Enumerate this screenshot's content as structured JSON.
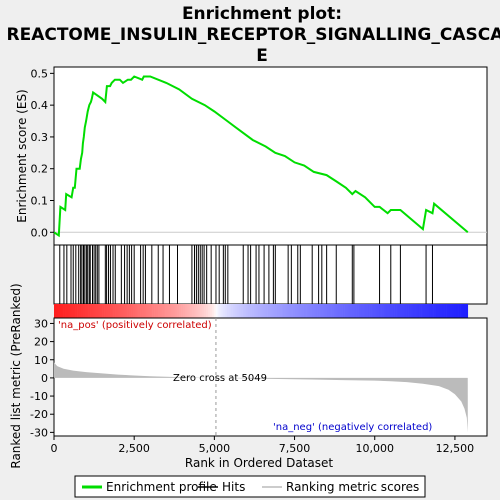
{
  "title_line1": "Enrichment plot:",
  "title_line2": "REACTOME_INSULIN_RECEPTOR_SIGNALLING_CASCAD",
  "title_line3": "E",
  "colors": {
    "es_line": "#00dd00",
    "hits": "#000000",
    "metric_fill": "#bbbbbb",
    "pos_label": "#cc0000",
    "neg_label": "#0000cc",
    "zero_line": "#999999"
  },
  "chart_data": {
    "type": "line",
    "x_label": "Rank in Ordered Dataset",
    "x_range": [
      0,
      13500
    ],
    "x_ticks": [
      0,
      2500,
      5000,
      7500,
      10000,
      12500
    ],
    "x_tick_labels": [
      "0",
      "2,500",
      "5,000",
      "7,500",
      "10,000",
      "12,500"
    ],
    "es_panel": {
      "ylabel": "Enrichment score (ES)",
      "ylim": [
        -0.04,
        0.52
      ],
      "y_ticks": [
        0.0,
        0.1,
        0.2,
        0.3,
        0.4,
        0.5
      ],
      "y_tick_labels": [
        "0.0",
        "0.1",
        "0.2",
        "0.3",
        "0.4",
        "0.5"
      ],
      "es_profile": [
        [
          0,
          0.0
        ],
        [
          150,
          -0.01
        ],
        [
          200,
          0.08
        ],
        [
          350,
          0.07
        ],
        [
          380,
          0.12
        ],
        [
          550,
          0.11
        ],
        [
          600,
          0.14
        ],
        [
          650,
          0.14
        ],
        [
          700,
          0.2
        ],
        [
          800,
          0.2
        ],
        [
          840,
          0.23
        ],
        [
          880,
          0.25
        ],
        [
          900,
          0.28
        ],
        [
          930,
          0.3
        ],
        [
          960,
          0.33
        ],
        [
          1000,
          0.35
        ],
        [
          1050,
          0.38
        ],
        [
          1100,
          0.4
        ],
        [
          1150,
          0.41
        ],
        [
          1180,
          0.42
        ],
        [
          1220,
          0.44
        ],
        [
          1500,
          0.42
        ],
        [
          1600,
          0.41
        ],
        [
          1650,
          0.46
        ],
        [
          1750,
          0.46
        ],
        [
          1800,
          0.47
        ],
        [
          1900,
          0.48
        ],
        [
          2050,
          0.48
        ],
        [
          2150,
          0.47
        ],
        [
          2300,
          0.48
        ],
        [
          2400,
          0.48
        ],
        [
          2500,
          0.49
        ],
        [
          2750,
          0.48
        ],
        [
          2800,
          0.49
        ],
        [
          3000,
          0.49
        ],
        [
          3500,
          0.47
        ],
        [
          3900,
          0.45
        ],
        [
          4300,
          0.42
        ],
        [
          4700,
          0.4
        ],
        [
          5000,
          0.38
        ],
        [
          5400,
          0.35
        ],
        [
          5800,
          0.32
        ],
        [
          6200,
          0.29
        ],
        [
          6600,
          0.27
        ],
        [
          6900,
          0.25
        ],
        [
          7200,
          0.24
        ],
        [
          7500,
          0.22
        ],
        [
          7800,
          0.21
        ],
        [
          8100,
          0.19
        ],
        [
          8500,
          0.18
        ],
        [
          8800,
          0.16
        ],
        [
          9100,
          0.14
        ],
        [
          9300,
          0.12
        ],
        [
          9400,
          0.13
        ],
        [
          9700,
          0.11
        ],
        [
          10000,
          0.08
        ],
        [
          10150,
          0.08
        ],
        [
          10400,
          0.06
        ],
        [
          10500,
          0.07
        ],
        [
          10800,
          0.07
        ],
        [
          11500,
          0.01
        ],
        [
          11600,
          0.07
        ],
        [
          11800,
          0.06
        ],
        [
          11850,
          0.09
        ],
        [
          12900,
          0.0
        ]
      ]
    },
    "hits": [
      180,
      310,
      400,
      530,
      600,
      680,
      770,
      830,
      870,
      920,
      960,
      1010,
      1050,
      1100,
      1130,
      1200,
      1250,
      1300,
      1350,
      1400,
      1600,
      1640,
      1700,
      1760,
      1840,
      1910,
      2100,
      2200,
      2280,
      2350,
      2420,
      2500,
      2700,
      2780,
      2850,
      3050,
      3250,
      3400,
      3600,
      3850,
      4300,
      4380,
      4440,
      4500,
      4560,
      4620,
      4680,
      4760,
      4900,
      5050,
      5150,
      5280,
      5340,
      5420,
      5900,
      6050,
      6130,
      6300,
      6390,
      6550,
      6700,
      6840,
      6900,
      7300,
      7400,
      7600,
      7680,
      8050,
      8250,
      8350,
      8500,
      8800,
      9300,
      9350,
      10150,
      10500,
      10800,
      11600,
      11800
    ],
    "metric_panel": {
      "ylabel": "Ranked list metric (PreRanked)",
      "ylim": [
        -32,
        33
      ],
      "y_ticks": [
        -30,
        -20,
        -10,
        0,
        10,
        20,
        30
      ],
      "y_tick_labels": [
        "-30",
        "-20",
        "-10",
        "0",
        "10",
        "20",
        "30"
      ],
      "metric_curve": [
        [
          0,
          8.5
        ],
        [
          100,
          6.5
        ],
        [
          300,
          5.0
        ],
        [
          600,
          4.0
        ],
        [
          1000,
          3.2
        ],
        [
          1500,
          2.5
        ],
        [
          2000,
          1.8
        ],
        [
          2500,
          1.3
        ],
        [
          3000,
          0.9
        ],
        [
          3500,
          0.6
        ],
        [
          4000,
          0.35
        ],
        [
          4500,
          0.15
        ],
        [
          5049,
          0.0
        ],
        [
          5500,
          -0.1
        ],
        [
          6000,
          -0.3
        ],
        [
          7000,
          -0.6
        ],
        [
          8000,
          -0.9
        ],
        [
          9000,
          -1.2
        ],
        [
          10000,
          -1.5
        ],
        [
          10500,
          -1.8
        ],
        [
          11000,
          -2.3
        ],
        [
          11500,
          -3.2
        ],
        [
          12000,
          -4.5
        ],
        [
          12300,
          -6.5
        ],
        [
          12500,
          -9.0
        ],
        [
          12700,
          -13.0
        ],
        [
          12800,
          -17.0
        ],
        [
          12870,
          -22.0
        ],
        [
          12900,
          -30.0
        ]
      ],
      "zero_cross_label": "Zero cross at 5049",
      "zero_cross_rank": 5049,
      "pos_label": "'na_pos' (positively correlated)",
      "neg_label": "'na_neg' (negatively correlated)"
    },
    "legend": [
      {
        "label": "Enrichment profile",
        "color": "#00dd00",
        "kind": "line"
      },
      {
        "label": "Hits",
        "color": "#000000",
        "kind": "line"
      },
      {
        "label": "Ranking metric scores",
        "color": "#bbbbbb",
        "kind": "line"
      }
    ]
  }
}
